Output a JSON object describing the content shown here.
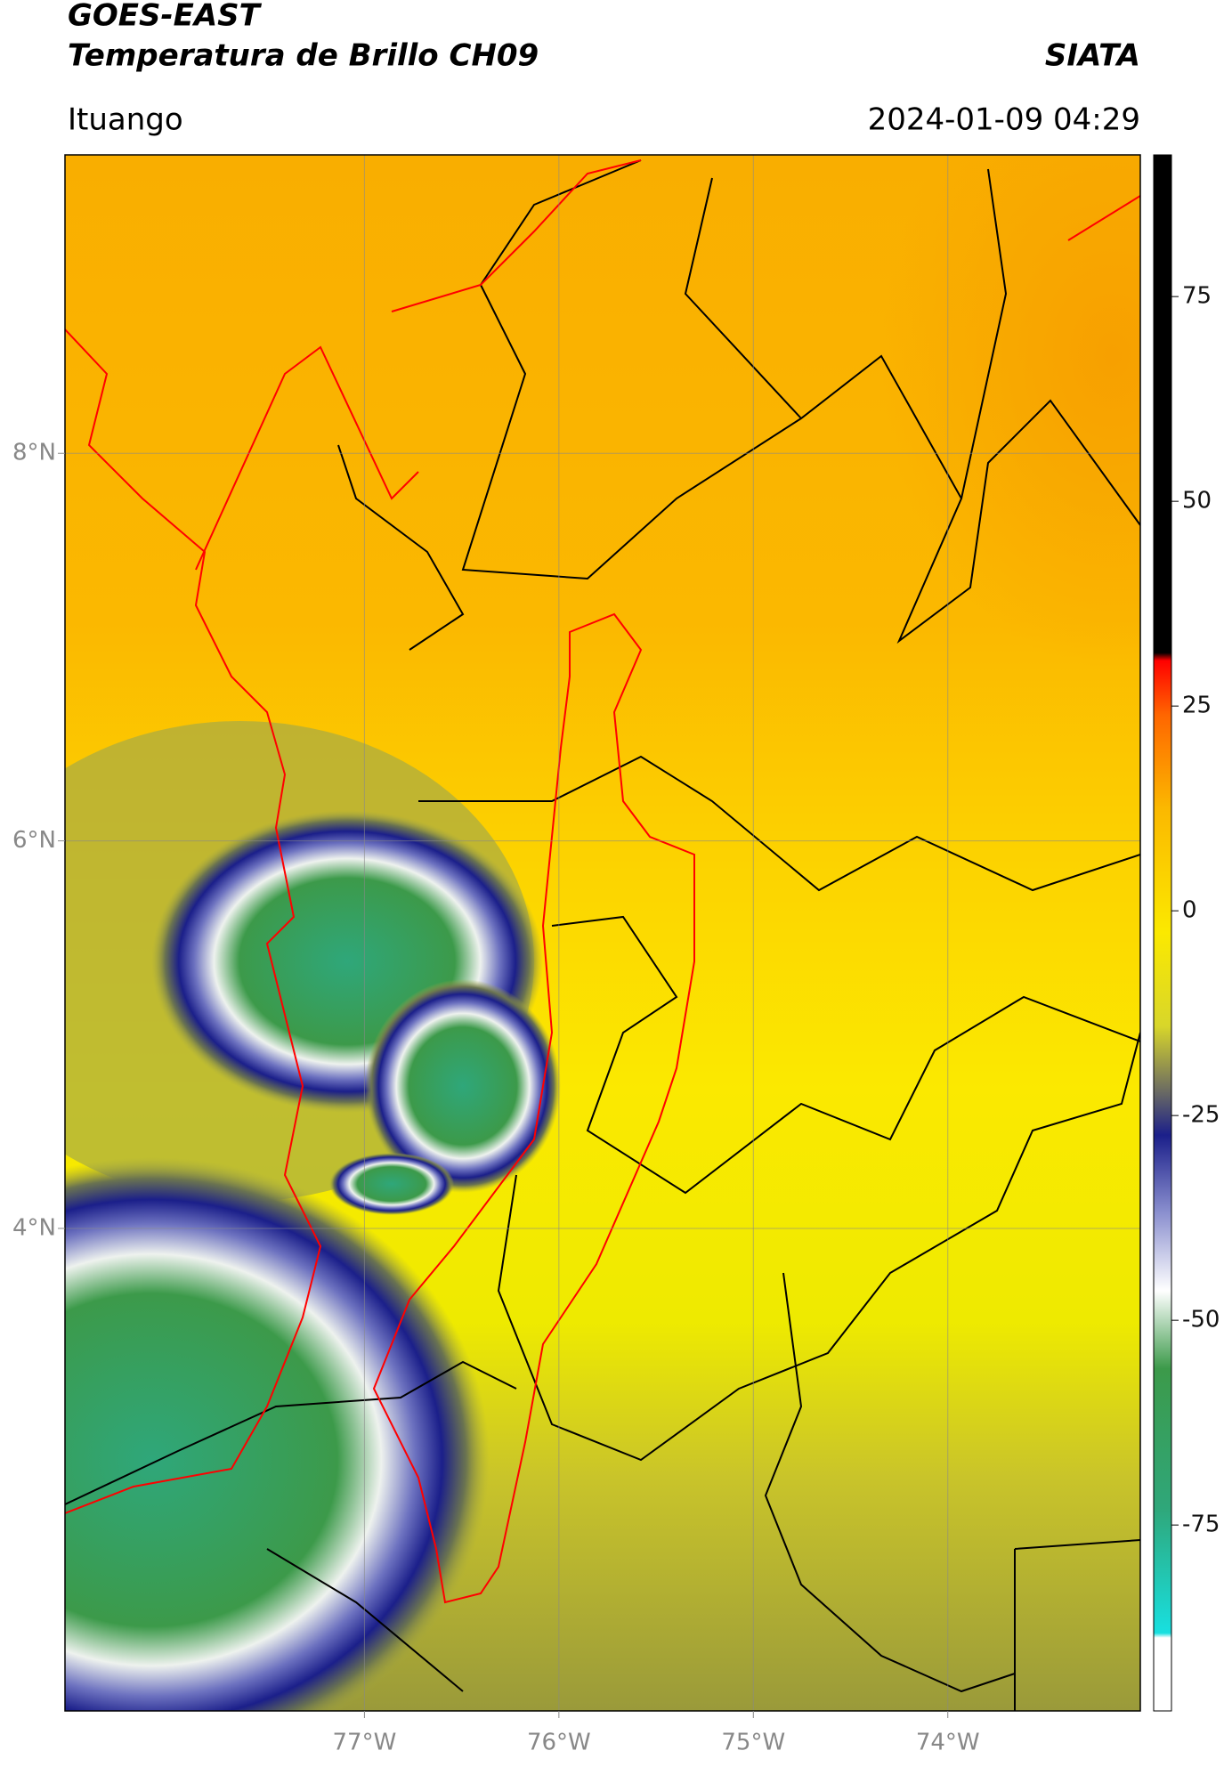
{
  "header": {
    "title_line1": "GOES-EAST",
    "title_line2": "Temperatura de Brillo CH09",
    "brand": "SIATA",
    "location": "Ituango",
    "datetime": "2024-01-09 04:29"
  },
  "map": {
    "lon_range": [
      -78.54,
      -73.01
    ],
    "lat_range": [
      1.51,
      9.54
    ],
    "grid": true,
    "lon_ticks": [
      {
        "value": -77,
        "label": "77°W"
      },
      {
        "value": -76,
        "label": "76°W"
      },
      {
        "value": -75,
        "label": "75°W"
      },
      {
        "value": -74,
        "label": "74°W"
      }
    ],
    "lat_ticks": [
      {
        "value": 8,
        "label": "8°N"
      },
      {
        "value": 6,
        "label": "6°N"
      },
      {
        "value": 4,
        "label": "4°N"
      }
    ]
  },
  "colorbar": {
    "range": [
      -97.7,
      92.3
    ],
    "ticks": [
      75,
      50,
      25,
      0,
      -25,
      -50,
      -75
    ]
  }
}
